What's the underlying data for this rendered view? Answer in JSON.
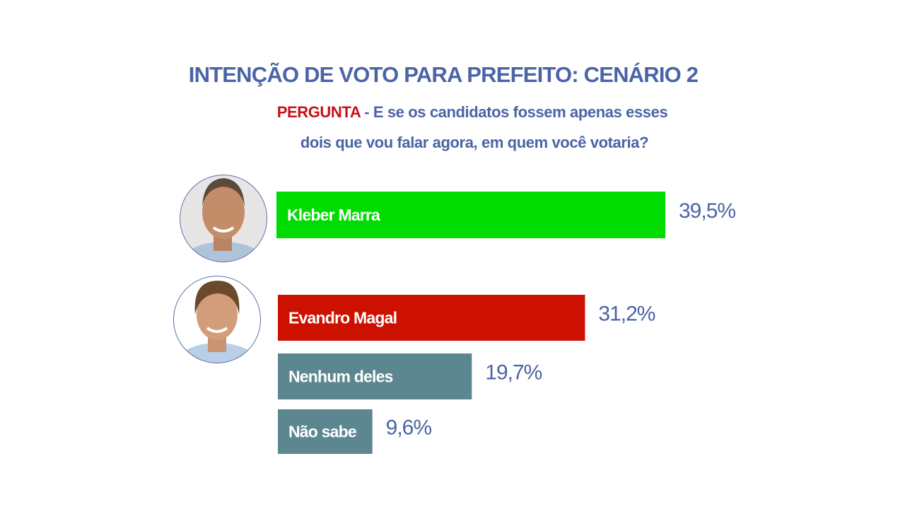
{
  "chart_data": {
    "type": "bar",
    "title": "INTENÇÃO DE VOTO PARA PREFEITO: CENÁRIO 2",
    "question_label": "PERGUNTA",
    "question": [
      "- E se os candidatos fossem apenas esses",
      "dois que vou falar agora, em quem você votaria?"
    ],
    "categories": [
      "Kleber Marra",
      "Evandro Magal",
      "Nenhum deles",
      "Não sabe"
    ],
    "values": [
      39.5,
      31.2,
      19.7,
      9.6
    ],
    "value_labels": [
      "39,5%",
      "31,2%",
      "19,7%",
      "9,6%"
    ],
    "colors": [
      "#00dc00",
      "#cc1100",
      "#5c8790",
      "#5c8790"
    ]
  }
}
